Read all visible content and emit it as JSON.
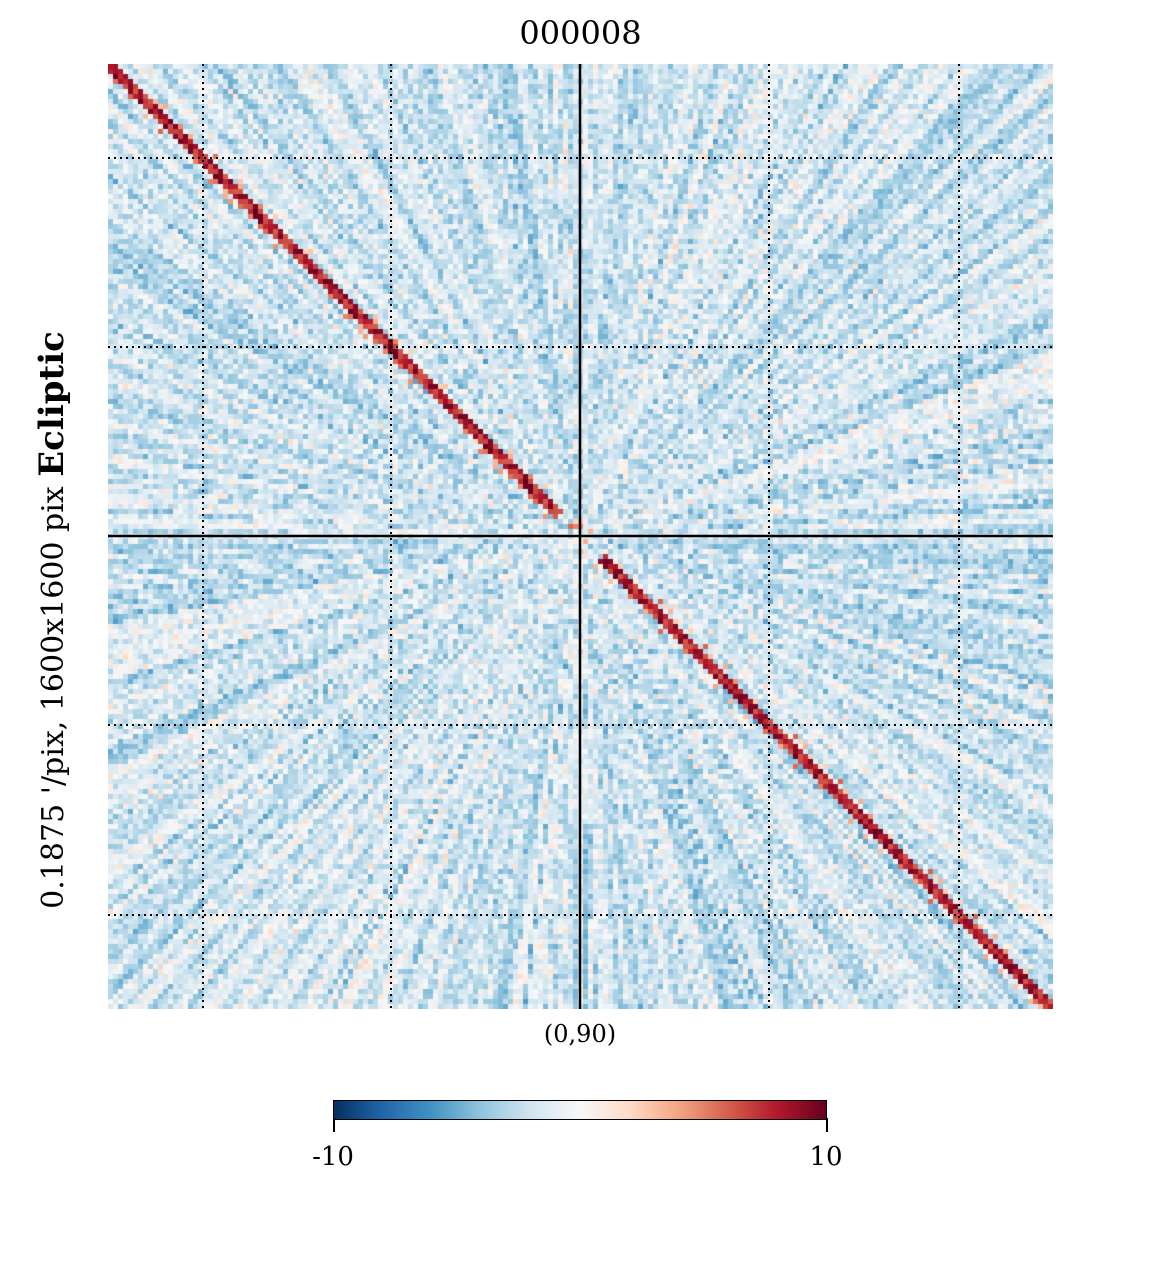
{
  "title": "000008",
  "side_label": {
    "projection": "Ecliptic",
    "resolution": "0.1875 '/pix,   1600x1600 pix"
  },
  "center_label": "(0,90)",
  "colorbar": {
    "min_label": "-10",
    "max_label": "10",
    "colormap": [
      "#053061",
      "#2166ac",
      "#4393c3",
      "#92c5de",
      "#d1e5f0",
      "#f7f7f7",
      "#fddbc7",
      "#f4a582",
      "#d6604d",
      "#b2182b",
      "#67001f"
    ]
  },
  "chart_data": {
    "type": "heatmap",
    "title": "000008",
    "projection": "gnomonic",
    "coord": "Ecliptic",
    "center": "(0,90)",
    "vmin": -10,
    "vmax": 10,
    "grid": "on",
    "colorbar_placement": "bottom",
    "dominant_value_range": [
      -6,
      1
    ],
    "features": [
      "radial streaks from map center",
      "red diagonal streak top-left to bottom-right (values near 8-10)"
    ]
  }
}
